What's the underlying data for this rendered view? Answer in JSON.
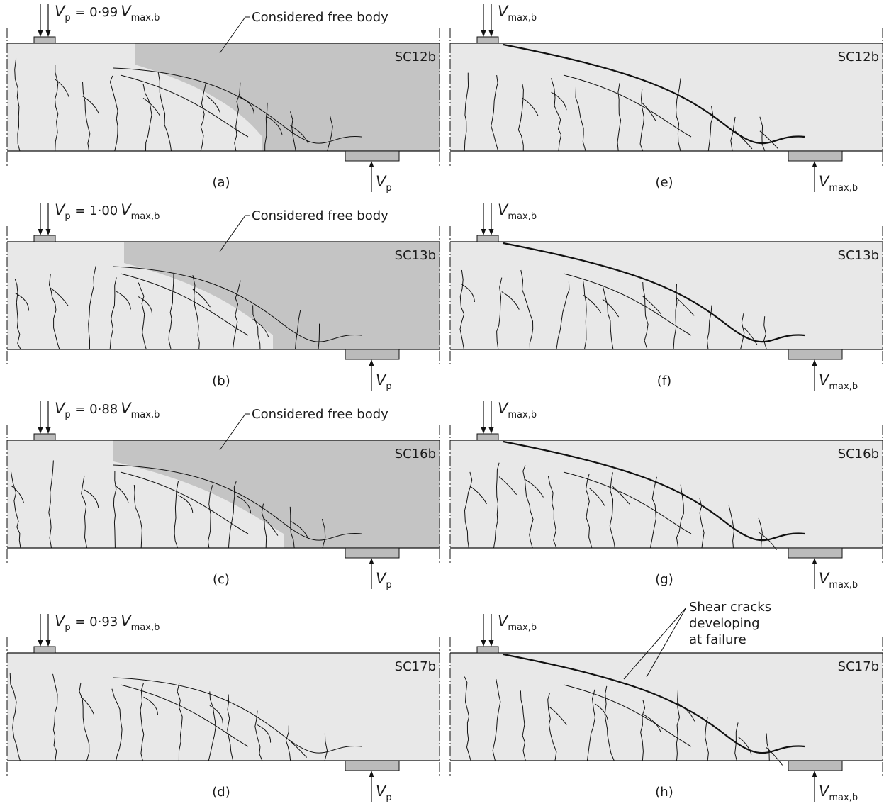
{
  "panels": [
    {
      "label": "(a)",
      "specimen": "SC12b",
      "load": {
        "symbol": "V",
        "sub": "p",
        "eq": " = 0·99",
        "ref_symbol": "V",
        "ref_sub": "max,b"
      },
      "reaction": {
        "symbol": "V",
        "sub": "p"
      },
      "free_body": "Considered free body"
    },
    {
      "label": "(b)",
      "specimen": "SC13b",
      "load": {
        "symbol": "V",
        "sub": "p",
        "eq": " = 1·00",
        "ref_symbol": "V",
        "ref_sub": "max,b"
      },
      "reaction": {
        "symbol": "V",
        "sub": "p"
      },
      "free_body": "Considered free body"
    },
    {
      "label": "(c)",
      "specimen": "SC16b",
      "load": {
        "symbol": "V",
        "sub": "p",
        "eq": " = 0·88",
        "ref_symbol": "V",
        "ref_sub": "max,b"
      },
      "reaction": {
        "symbol": "V",
        "sub": "p"
      },
      "free_body": "Considered free body"
    },
    {
      "label": "(d)",
      "specimen": "SC17b",
      "load": {
        "symbol": "V",
        "sub": "p",
        "eq": " = 0·93",
        "ref_symbol": "V",
        "ref_sub": "max,b"
      },
      "reaction": {
        "symbol": "V",
        "sub": "p"
      }
    },
    {
      "label": "(e)",
      "specimen": "SC12b",
      "load": {
        "symbol": "V",
        "sub": "max,b"
      },
      "reaction": {
        "symbol": "V",
        "sub": "max,b"
      }
    },
    {
      "label": "(f)",
      "specimen": "SC13b",
      "load": {
        "symbol": "V",
        "sub": "max,b"
      },
      "reaction": {
        "symbol": "V",
        "sub": "max,b"
      }
    },
    {
      "label": "(g)",
      "specimen": "SC16b",
      "load": {
        "symbol": "V",
        "sub": "max,b"
      },
      "reaction": {
        "symbol": "V",
        "sub": "max,b"
      }
    },
    {
      "label": "(h)",
      "specimen": "SC17b",
      "load": {
        "symbol": "V",
        "sub": "max,b"
      },
      "reaction": {
        "symbol": "V",
        "sub": "max,b"
      }
    }
  ],
  "annotation": {
    "lines": [
      "Shear cracks",
      "developing",
      "at failure"
    ]
  }
}
